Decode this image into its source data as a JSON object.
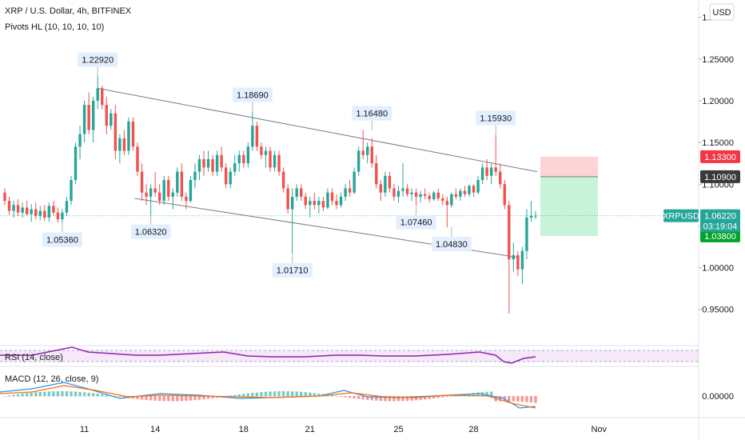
{
  "header": {
    "title": "XRP / U.S. Dollar, 4h, BITFINEX",
    "indicator": "Pivots HL (10, 10, 10, 10)"
  },
  "currency_button": "USD",
  "colors": {
    "up": "#26a69a",
    "down": "#ef5350",
    "ticker_tag": "#26a69a",
    "target_tag": "#f23645",
    "entry_tag": "#3a3a3a",
    "stop_tag": "#00a32b",
    "rsi": "#8e24aa",
    "macd": "#2196f3",
    "signal": "#ff6d00",
    "channel": "#787b86",
    "pivot_box": "#e3effd"
  },
  "chart_data": [
    {
      "type": "candlestick",
      "title": "XRP / U.S. Dollar, 4h, BITFINEX",
      "ylim": [
        0.92,
        1.315
      ],
      "y_ticks": [
        "1.30000",
        "1.25000",
        "1.20000",
        "1.15000",
        "1.10000",
        "1.05000",
        "1.00000",
        "0.95000"
      ],
      "x_ticks": [
        "11",
        "14",
        "18",
        "21",
        "25",
        "28",
        "Nov"
      ],
      "candles": [
        {
          "o": 1.09,
          "h": 1.095,
          "l": 1.075,
          "c": 1.08
        },
        {
          "o": 1.08,
          "h": 1.085,
          "l": 1.063,
          "c": 1.068
        },
        {
          "o": 1.068,
          "h": 1.08,
          "l": 1.06,
          "c": 1.075
        },
        {
          "o": 1.075,
          "h": 1.082,
          "l": 1.062,
          "c": 1.066
        },
        {
          "o": 1.066,
          "h": 1.078,
          "l": 1.06,
          "c": 1.072
        },
        {
          "o": 1.072,
          "h": 1.08,
          "l": 1.062,
          "c": 1.064
        },
        {
          "o": 1.064,
          "h": 1.076,
          "l": 1.055,
          "c": 1.07
        },
        {
          "o": 1.07,
          "h": 1.078,
          "l": 1.058,
          "c": 1.062
        },
        {
          "o": 1.062,
          "h": 1.074,
          "l": 1.057,
          "c": 1.068
        },
        {
          "o": 1.068,
          "h": 1.075,
          "l": 1.056,
          "c": 1.06
        },
        {
          "o": 1.06,
          "h": 1.078,
          "l": 1.055,
          "c": 1.074
        },
        {
          "o": 1.074,
          "h": 1.08,
          "l": 1.062,
          "c": 1.066
        },
        {
          "o": 1.066,
          "h": 1.072,
          "l": 1.054,
          "c": 1.058
        },
        {
          "o": 1.058,
          "h": 1.07,
          "l": 1.0536,
          "c": 1.066
        },
        {
          "o": 1.066,
          "h": 1.085,
          "l": 1.062,
          "c": 1.08
        },
        {
          "o": 1.08,
          "h": 1.11,
          "l": 1.075,
          "c": 1.105
        },
        {
          "o": 1.105,
          "h": 1.15,
          "l": 1.1,
          "c": 1.145
        },
        {
          "o": 1.145,
          "h": 1.17,
          "l": 1.13,
          "c": 1.16
        },
        {
          "o": 1.16,
          "h": 1.2,
          "l": 1.15,
          "c": 1.195
        },
        {
          "o": 1.195,
          "h": 1.21,
          "l": 1.16,
          "c": 1.165
        },
        {
          "o": 1.165,
          "h": 1.205,
          "l": 1.15,
          "c": 1.2
        },
        {
          "o": 1.2,
          "h": 1.2292,
          "l": 1.19,
          "c": 1.215
        },
        {
          "o": 1.215,
          "h": 1.218,
          "l": 1.19,
          "c": 1.195
        },
        {
          "o": 1.195,
          "h": 1.205,
          "l": 1.16,
          "c": 1.17
        },
        {
          "o": 1.17,
          "h": 1.19,
          "l": 1.165,
          "c": 1.185
        },
        {
          "o": 1.185,
          "h": 1.195,
          "l": 1.13,
          "c": 1.14
        },
        {
          "o": 1.14,
          "h": 1.16,
          "l": 1.125,
          "c": 1.155
        },
        {
          "o": 1.155,
          "h": 1.165,
          "l": 1.135,
          "c": 1.14
        },
        {
          "o": 1.14,
          "h": 1.18,
          "l": 1.135,
          "c": 1.175
        },
        {
          "o": 1.175,
          "h": 1.18,
          "l": 1.14,
          "c": 1.145
        },
        {
          "o": 1.145,
          "h": 1.15,
          "l": 1.11,
          "c": 1.115
        },
        {
          "o": 1.115,
          "h": 1.125,
          "l": 1.08,
          "c": 1.09
        },
        {
          "o": 1.09,
          "h": 1.1,
          "l": 1.075,
          "c": 1.085
        },
        {
          "o": 1.085,
          "h": 1.1,
          "l": 1.0632,
          "c": 1.095
        },
        {
          "o": 1.095,
          "h": 1.115,
          "l": 1.085,
          "c": 1.09
        },
        {
          "o": 1.09,
          "h": 1.1,
          "l": 1.075,
          "c": 1.08
        },
        {
          "o": 1.08,
          "h": 1.11,
          "l": 1.075,
          "c": 1.105
        },
        {
          "o": 1.105,
          "h": 1.11,
          "l": 1.08,
          "c": 1.085
        },
        {
          "o": 1.085,
          "h": 1.095,
          "l": 1.07,
          "c": 1.09
        },
        {
          "o": 1.09,
          "h": 1.12,
          "l": 1.085,
          "c": 1.115
        },
        {
          "o": 1.115,
          "h": 1.125,
          "l": 1.08,
          "c": 1.085
        },
        {
          "o": 1.085,
          "h": 1.09,
          "l": 1.07,
          "c": 1.08
        },
        {
          "o": 1.08,
          "h": 1.11,
          "l": 1.078,
          "c": 1.105
        },
        {
          "o": 1.105,
          "h": 1.125,
          "l": 1.095,
          "c": 1.115
        },
        {
          "o": 1.115,
          "h": 1.135,
          "l": 1.105,
          "c": 1.13
        },
        {
          "o": 1.13,
          "h": 1.14,
          "l": 1.11,
          "c": 1.12
        },
        {
          "o": 1.12,
          "h": 1.14,
          "l": 1.115,
          "c": 1.13
        },
        {
          "o": 1.13,
          "h": 1.135,
          "l": 1.11,
          "c": 1.115
        },
        {
          "o": 1.115,
          "h": 1.14,
          "l": 1.11,
          "c": 1.135
        },
        {
          "o": 1.135,
          "h": 1.145,
          "l": 1.115,
          "c": 1.12
        },
        {
          "o": 1.12,
          "h": 1.125,
          "l": 1.095,
          "c": 1.1
        },
        {
          "o": 1.1,
          "h": 1.12,
          "l": 1.095,
          "c": 1.115
        },
        {
          "o": 1.115,
          "h": 1.135,
          "l": 1.11,
          "c": 1.125
        },
        {
          "o": 1.125,
          "h": 1.14,
          "l": 1.115,
          "c": 1.135
        },
        {
          "o": 1.135,
          "h": 1.14,
          "l": 1.12,
          "c": 1.125
        },
        {
          "o": 1.125,
          "h": 1.15,
          "l": 1.12,
          "c": 1.145
        },
        {
          "o": 1.145,
          "h": 1.1869,
          "l": 1.14,
          "c": 1.17
        },
        {
          "o": 1.17,
          "h": 1.175,
          "l": 1.14,
          "c": 1.145
        },
        {
          "o": 1.145,
          "h": 1.15,
          "l": 1.13,
          "c": 1.135
        },
        {
          "o": 1.135,
          "h": 1.145,
          "l": 1.12,
          "c": 1.14
        },
        {
          "o": 1.14,
          "h": 1.145,
          "l": 1.115,
          "c": 1.12
        },
        {
          "o": 1.12,
          "h": 1.14,
          "l": 1.115,
          "c": 1.135
        },
        {
          "o": 1.135,
          "h": 1.14,
          "l": 1.11,
          "c": 1.115
        },
        {
          "o": 1.115,
          "h": 1.12,
          "l": 1.09,
          "c": 1.095
        },
        {
          "o": 1.095,
          "h": 1.1,
          "l": 1.065,
          "c": 1.07
        },
        {
          "o": 1.07,
          "h": 1.095,
          "l": 1.0171,
          "c": 1.085
        },
        {
          "o": 1.085,
          "h": 1.1,
          "l": 1.08,
          "c": 1.095
        },
        {
          "o": 1.095,
          "h": 1.1,
          "l": 1.08,
          "c": 1.085
        },
        {
          "o": 1.085,
          "h": 1.09,
          "l": 1.07,
          "c": 1.075
        },
        {
          "o": 1.075,
          "h": 1.085,
          "l": 1.06,
          "c": 1.08
        },
        {
          "o": 1.08,
          "h": 1.09,
          "l": 1.07,
          "c": 1.075
        },
        {
          "o": 1.075,
          "h": 1.085,
          "l": 1.065,
          "c": 1.08
        },
        {
          "o": 1.08,
          "h": 1.085,
          "l": 1.068,
          "c": 1.072
        },
        {
          "o": 1.072,
          "h": 1.095,
          "l": 1.07,
          "c": 1.09
        },
        {
          "o": 1.09,
          "h": 1.095,
          "l": 1.075,
          "c": 1.08
        },
        {
          "o": 1.08,
          "h": 1.088,
          "l": 1.07,
          "c": 1.075
        },
        {
          "o": 1.075,
          "h": 1.09,
          "l": 1.072,
          "c": 1.085
        },
        {
          "o": 1.085,
          "h": 1.1,
          "l": 1.08,
          "c": 1.095
        },
        {
          "o": 1.095,
          "h": 1.105,
          "l": 1.085,
          "c": 1.09
        },
        {
          "o": 1.09,
          "h": 1.12,
          "l": 1.088,
          "c": 1.115
        },
        {
          "o": 1.115,
          "h": 1.145,
          "l": 1.11,
          "c": 1.14
        },
        {
          "o": 1.14,
          "h": 1.165,
          "l": 1.13,
          "c": 1.135
        },
        {
          "o": 1.135,
          "h": 1.15,
          "l": 1.125,
          "c": 1.145
        },
        {
          "o": 1.145,
          "h": 1.155,
          "l": 1.12,
          "c": 1.125
        },
        {
          "o": 1.125,
          "h": 1.135,
          "l": 1.095,
          "c": 1.1
        },
        {
          "o": 1.1,
          "h": 1.105,
          "l": 1.08,
          "c": 1.09
        },
        {
          "o": 1.09,
          "h": 1.115,
          "l": 1.085,
          "c": 1.11
        },
        {
          "o": 1.11,
          "h": 1.115,
          "l": 1.09,
          "c": 1.095
        },
        {
          "o": 1.095,
          "h": 1.1,
          "l": 1.08,
          "c": 1.085
        },
        {
          "o": 1.085,
          "h": 1.098,
          "l": 1.078,
          "c": 1.092
        },
        {
          "o": 1.092,
          "h": 1.125,
          "l": 1.085,
          "c": 1.095
        },
        {
          "o": 1.095,
          "h": 1.1,
          "l": 1.085,
          "c": 1.088
        },
        {
          "o": 1.088,
          "h": 1.095,
          "l": 1.08,
          "c": 1.09
        },
        {
          "o": 1.09,
          "h": 1.095,
          "l": 1.0746,
          "c": 1.085
        },
        {
          "o": 1.085,
          "h": 1.092,
          "l": 1.078,
          "c": 1.088
        },
        {
          "o": 1.088,
          "h": 1.095,
          "l": 1.082,
          "c": 1.086
        },
        {
          "o": 1.086,
          "h": 1.09,
          "l": 1.078,
          "c": 1.082
        },
        {
          "o": 1.082,
          "h": 1.092,
          "l": 1.08,
          "c": 1.09
        },
        {
          "o": 1.09,
          "h": 1.095,
          "l": 1.08,
          "c": 1.083
        },
        {
          "o": 1.083,
          "h": 1.088,
          "l": 1.075,
          "c": 1.08
        },
        {
          "o": 1.08,
          "h": 1.085,
          "l": 1.0483,
          "c": 1.075
        },
        {
          "o": 1.075,
          "h": 1.09,
          "l": 1.072,
          "c": 1.088
        },
        {
          "o": 1.088,
          "h": 1.095,
          "l": 1.082,
          "c": 1.085
        },
        {
          "o": 1.085,
          "h": 1.095,
          "l": 1.08,
          "c": 1.092
        },
        {
          "o": 1.092,
          "h": 1.098,
          "l": 1.085,
          "c": 1.088
        },
        {
          "o": 1.088,
          "h": 1.1,
          "l": 1.085,
          "c": 1.098
        },
        {
          "o": 1.098,
          "h": 1.1,
          "l": 1.085,
          "c": 1.09
        },
        {
          "o": 1.09,
          "h": 1.11,
          "l": 1.088,
          "c": 1.105
        },
        {
          "o": 1.105,
          "h": 1.125,
          "l": 1.1,
          "c": 1.12
        },
        {
          "o": 1.12,
          "h": 1.13,
          "l": 1.105,
          "c": 1.11
        },
        {
          "o": 1.11,
          "h": 1.125,
          "l": 1.1,
          "c": 1.12
        },
        {
          "o": 1.12,
          "h": 1.1593,
          "l": 1.11,
          "c": 1.115
        },
        {
          "o": 1.115,
          "h": 1.125,
          "l": 1.095,
          "c": 1.1
        },
        {
          "o": 1.1,
          "h": 1.105,
          "l": 1.07,
          "c": 1.075
        },
        {
          "o": 1.075,
          "h": 1.08,
          "l": 0.945,
          "c": 1.01
        },
        {
          "o": 1.01,
          "h": 1.03,
          "l": 0.995,
          "c": 1.015
        },
        {
          "o": 1.015,
          "h": 1.02,
          "l": 0.99,
          "c": 0.998
        },
        {
          "o": 0.998,
          "h": 1.025,
          "l": 0.98,
          "c": 1.02
        },
        {
          "o": 1.02,
          "h": 1.07,
          "l": 1.01,
          "c": 1.06
        },
        {
          "o": 1.06,
          "h": 1.08,
          "l": 1.055,
          "c": 1.062
        },
        {
          "o": 1.062,
          "h": 1.068,
          "l": 1.058,
          "c": 1.0622
        }
      ],
      "pivots": [
        {
          "label": "1.22920",
          "value": 1.2292,
          "kind": "high"
        },
        {
          "label": "1.18690",
          "value": 1.1869,
          "kind": "high"
        },
        {
          "label": "1.16480",
          "value": 1.1648,
          "kind": "high"
        },
        {
          "label": "1.15930",
          "value": 1.1593,
          "kind": "high"
        },
        {
          "label": "1.05360",
          "value": 1.0536,
          "kind": "low"
        },
        {
          "label": "1.06320",
          "value": 1.0632,
          "kind": "low"
        },
        {
          "label": "1.01710",
          "value": 1.0171,
          "kind": "low"
        },
        {
          "label": "1.07460",
          "value": 1.0746,
          "kind": "low"
        },
        {
          "label": "1.04830",
          "value": 1.0483,
          "kind": "low"
        }
      ],
      "channel_upper": [
        [
          1.215,
          1.115
        ]
      ],
      "channel_lower": [
        [
          1.083,
          1.012
        ]
      ],
      "position": {
        "target": 1.133,
        "entry": 1.109,
        "stop": 1.038
      },
      "price_tags": [
        {
          "label": "1.13300",
          "value": 1.133,
          "kind": "target"
        },
        {
          "label": "1.10900",
          "value": 1.109,
          "kind": "entry"
        },
        {
          "label": "1.03800",
          "value": 1.038,
          "kind": "stop"
        }
      ],
      "last_price": {
        "symbol": "XRPUSD",
        "value": "1.06220",
        "countdown": "03:19:04",
        "price": 1.0622
      }
    },
    {
      "type": "line",
      "title": "RSI (14, close)",
      "note": "RSI oscillator pane"
    },
    {
      "type": "bar",
      "title": "MACD (12, 26, close, 9)",
      "y_ticks": [
        "0.00000"
      ]
    }
  ]
}
